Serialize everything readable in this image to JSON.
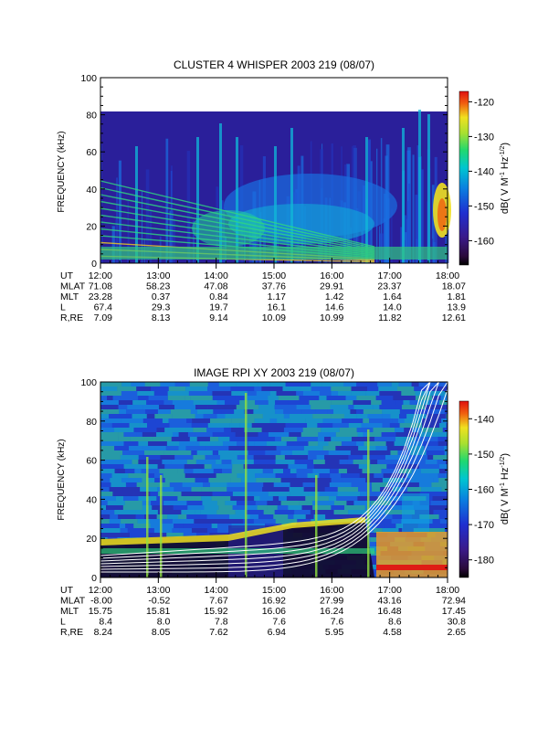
{
  "chart_data": [
    {
      "type": "heatmap",
      "title": "CLUSTER 4 WHISPER 2003 219 (08/07)",
      "ylabel": "FREQUENCY (kHz)",
      "ylim": [
        0,
        100
      ],
      "y_ticks": [
        "0",
        "20",
        "40",
        "60",
        "80",
        "100"
      ],
      "x_ticks": [
        "12:00",
        "13:00",
        "14:00",
        "15:00",
        "16:00",
        "17:00",
        "18:00"
      ],
      "data_upper_frequency_khz": 80,
      "colorbar": {
        "label_prefix": "dB( V M",
        "label_exp1": "-1",
        "label_mid": " Hz",
        "label_exp2": "-1/2",
        "label_suffix": ")",
        "range": [
          -167,
          -117
        ],
        "ticks": [
          "-120",
          "-130",
          "-140",
          "-150",
          "-160"
        ],
        "tick_values": [
          -120,
          -130,
          -140,
          -150,
          -160
        ]
      },
      "ephemeris": [
        {
          "label": "UT",
          "values": [
            "12:00",
            "",
            "",
            "",
            "",
            "",
            ""
          ]
        },
        {
          "label": "MLAT",
          "values": [
            "71.08",
            "58.23",
            "47.08",
            "37.76",
            "29.91",
            "23.37",
            "18.07"
          ]
        },
        {
          "label": "MLT",
          "values": [
            "23.28",
            "0.37",
            "0.84",
            "1.17",
            "1.42",
            "1.64",
            "1.81"
          ]
        },
        {
          "label": "L",
          "values": [
            "67.4",
            "29.3",
            "19.7",
            "16.1",
            "14.6",
            "14.0",
            "13.9"
          ]
        },
        {
          "label": "R,RE",
          "values": [
            "7.09",
            "8.13",
            "9.14",
            "10.09",
            "10.99",
            "11.82",
            "12.61"
          ]
        }
      ]
    },
    {
      "type": "heatmap",
      "title": "IMAGE RPI XY 2003 219 (08/07)",
      "ylabel": "FREQUENCY (kHz)",
      "ylim": [
        0,
        100
      ],
      "y_ticks": [
        "0",
        "20",
        "40",
        "60",
        "80",
        "100"
      ],
      "x_ticks": [
        "12:00",
        "13:00",
        "14:00",
        "15:00",
        "16:00",
        "17:00",
        "18:00"
      ],
      "colorbar": {
        "label_prefix": "dB( V M",
        "label_exp1": "-1",
        "label_mid": " Hz",
        "label_exp2": "-1/2",
        "label_suffix": ")",
        "range": [
          -185,
          -135
        ],
        "ticks": [
          "-140",
          "-150",
          "-160",
          "-170",
          "-180"
        ],
        "tick_values": [
          -140,
          -150,
          -160,
          -170,
          -180
        ]
      },
      "ephemeris": [
        {
          "label": "UT",
          "values": [
            "12:00",
            "",
            "",
            "",
            "",
            "",
            ""
          ]
        },
        {
          "label": "MLAT",
          "values": [
            "-8.00",
            "-0.52",
            "7.67",
            "16.92",
            "27.99",
            "43.16",
            "72.94"
          ]
        },
        {
          "label": "MLT",
          "values": [
            "15.75",
            "15.81",
            "15.92",
            "16.06",
            "16.24",
            "16.48",
            "17.45"
          ]
        },
        {
          "label": "L",
          "values": [
            "8.4",
            "8.0",
            "7.8",
            "7.6",
            "7.6",
            "8.6",
            "30.8"
          ]
        },
        {
          "label": "R,RE",
          "values": [
            "8.24",
            "8.05",
            "7.62",
            "6.94",
            "5.95",
            "4.58",
            "2.65"
          ]
        }
      ]
    }
  ]
}
